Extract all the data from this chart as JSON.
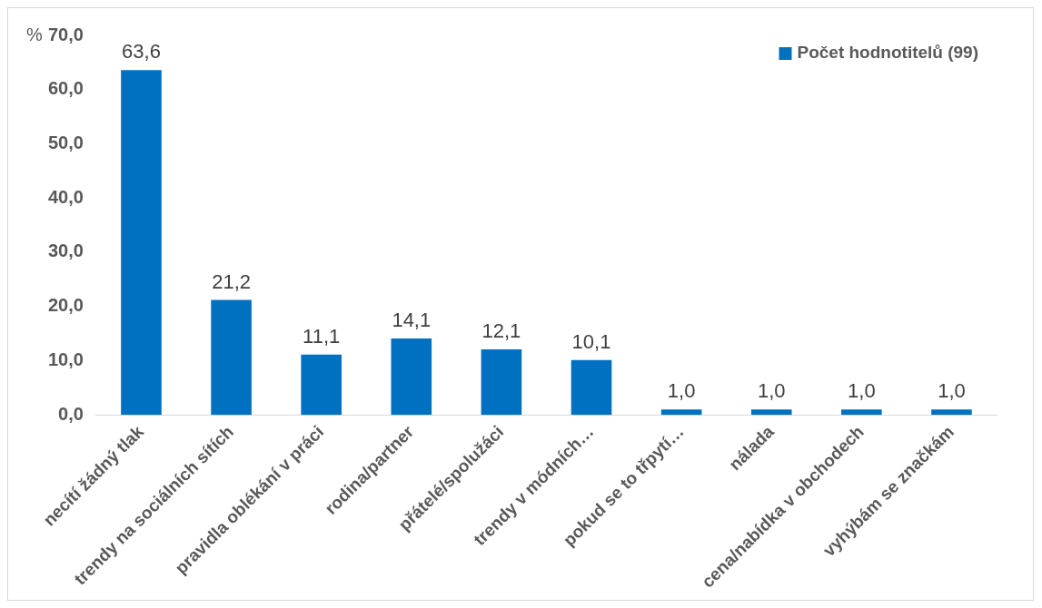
{
  "chart_data": {
    "type": "bar",
    "ylabel": "%",
    "categories": [
      "necítí žádný tlak",
      "trendy na sociálních sítích",
      "pravidla oblékání v práci",
      "rodina/partner",
      "přátelé/spolužáci",
      "trendy v módních…",
      "pokud se to třpytí…",
      "nálada",
      "cena/nabídka v obchodech",
      "vyhýbám se značkám"
    ],
    "series": [
      {
        "name": "Počet hodnotitelů (99)",
        "color": "#0070c0",
        "values": [
          63.6,
          21.2,
          11.1,
          14.1,
          12.1,
          10.1,
          1.0,
          1.0,
          1.0,
          1.0
        ],
        "value_labels": [
          "63,6",
          "21,2",
          "11,1",
          "14,1",
          "12,1",
          "10,1",
          "1,0",
          "1,0",
          "1,0",
          "1,0"
        ]
      }
    ],
    "ylim": [
      0,
      70
    ],
    "yticks": [
      {
        "value": 0,
        "label": "0,0"
      },
      {
        "value": 10,
        "label": "10,0"
      },
      {
        "value": 20,
        "label": "20,0"
      },
      {
        "value": 30,
        "label": "30,0"
      },
      {
        "value": 40,
        "label": "40,0"
      },
      {
        "value": 50,
        "label": "50,0"
      },
      {
        "value": 60,
        "label": "60,0"
      },
      {
        "value": 70,
        "label": "70,0"
      }
    ],
    "legend": "top right",
    "grid": false
  }
}
